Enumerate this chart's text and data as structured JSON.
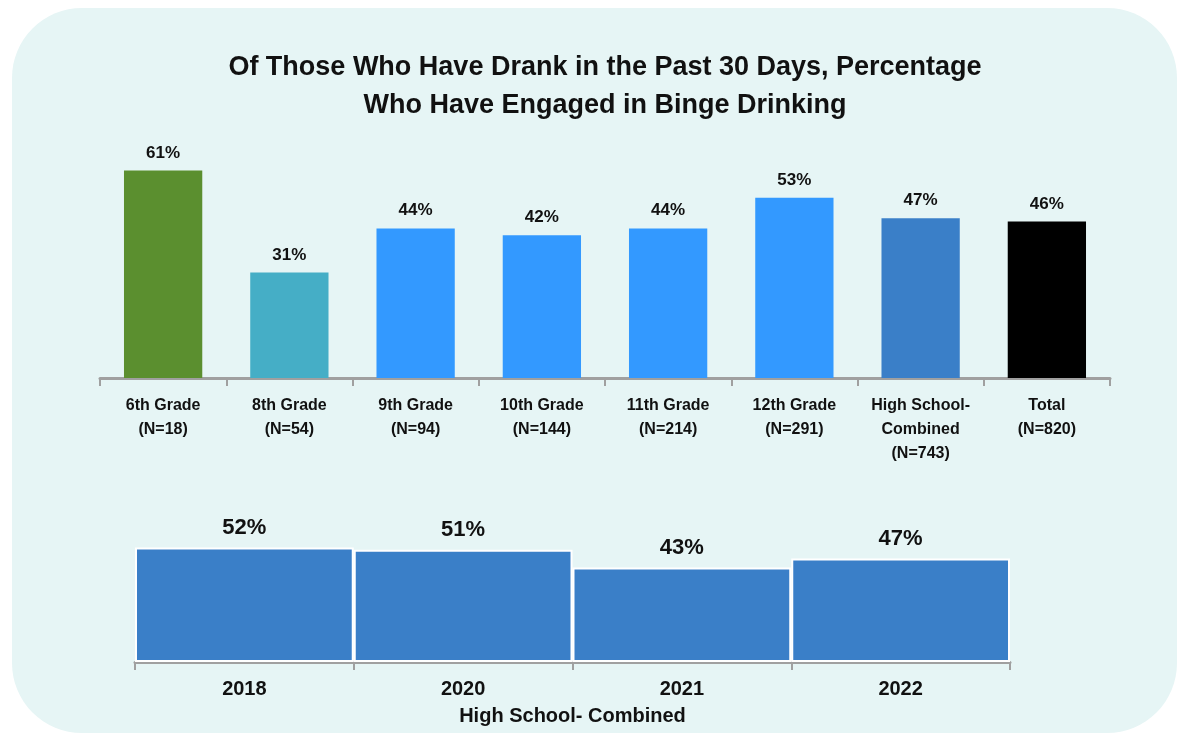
{
  "chart_data": [
    {
      "type": "bar",
      "title": "Of Those Who Have Drank in the Past 30 Days, Percentage\nWho Have Engaged in Binge Drinking",
      "categories": [
        "6th Grade\n(N=18)",
        "8th Grade\n(N=54)",
        "9th Grade\n(N=94)",
        "10th Grade\n(N=144)",
        "11th Grade\n(N=214)",
        "12th Grade\n(N=291)",
        "High School-\nCombined\n(N=743)",
        "Total\n(N=820)"
      ],
      "values": [
        61,
        31,
        44,
        42,
        44,
        53,
        47,
        46
      ],
      "colors": [
        "#5b8f2f",
        "#45aec6",
        "#3399ff",
        "#3399ff",
        "#3399ff",
        "#3399ff",
        "#3a7fc8",
        "#000000"
      ],
      "value_labels": [
        "61%",
        "31%",
        "44%",
        "42%",
        "44%",
        "53%",
        "47%",
        "46%"
      ],
      "tick_labels": "x",
      "grid": false
    },
    {
      "type": "bar",
      "xlabel": "High School- Combined",
      "categories": [
        "2018",
        "2020",
        "2021",
        "2022"
      ],
      "values": [
        52,
        51,
        43,
        47
      ],
      "colors": [
        "#3a7fc8",
        "#3a7fc8",
        "#3a7fc8",
        "#3a7fc8"
      ],
      "value_labels": [
        "52%",
        "51%",
        "43%",
        "47%"
      ],
      "tick_labels": "x",
      "grid": false
    }
  ]
}
